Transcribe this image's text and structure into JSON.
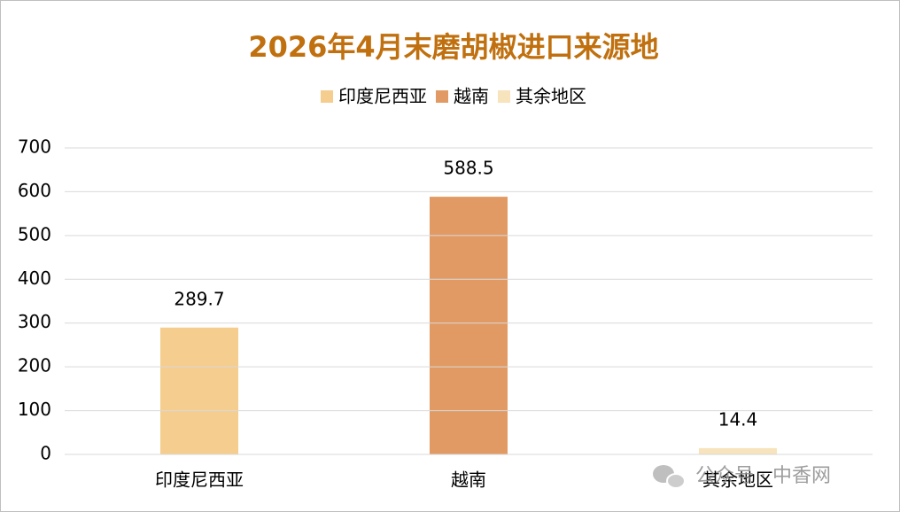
{
  "chart_data": {
    "type": "bar",
    "title": "2026年4月末磨胡椒进口来源地",
    "categories": [
      "印度尼西亚",
      "越南",
      "其余地区"
    ],
    "values": [
      289.7,
      588.5,
      14.4
    ],
    "colors": [
      "#f5cd8e",
      "#e19a64",
      "#f7e3bc"
    ],
    "ylim": [
      0,
      700
    ],
    "yticks": [
      0,
      100,
      200,
      300,
      400,
      500,
      600,
      700
    ],
    "grid": true,
    "legend": "top",
    "data_labels": true
  },
  "watermark": "公众号 · 中香网"
}
